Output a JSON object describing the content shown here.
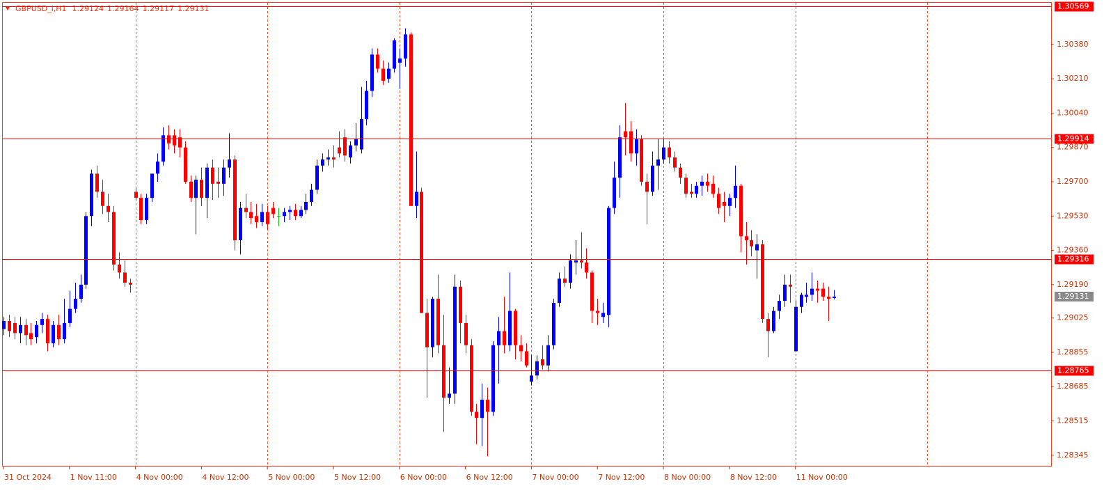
{
  "chart_data": {
    "type": "candlestick",
    "symbol": "GBPUSD_i,H1",
    "colors": {
      "up": "#0000ff",
      "down": "#ff0000",
      "doji": "#00c000",
      "level": "#ff0000",
      "separator": "#ff4a1c",
      "axis": "#c83200"
    },
    "ylim": [
      1.28289,
      1.30583
    ],
    "yticks": [
      {
        "value": 1.3038,
        "label": "1.30380"
      },
      {
        "value": 1.3021,
        "label": "1.30210"
      },
      {
        "value": 1.3004,
        "label": "1.30040"
      },
      {
        "value": 1.2987,
        "label": "1.29870"
      },
      {
        "value": 1.297,
        "label": "1.29700"
      },
      {
        "value": 1.2953,
        "label": "1.29530"
      },
      {
        "value": 1.2936,
        "label": "1.29360"
      },
      {
        "value": 1.2919,
        "label": "1.29190"
      },
      {
        "value": 1.29025,
        "label": "1.29025"
      },
      {
        "value": 1.28855,
        "label": "1.28855"
      },
      {
        "value": 1.28685,
        "label": "1.28685"
      },
      {
        "value": 1.28515,
        "label": "1.28515"
      },
      {
        "value": 1.28345,
        "label": "1.28345"
      }
    ],
    "xlim": [
      -0.25,
      190.5
    ],
    "xticks": [
      {
        "value": 0,
        "label": "31 Oct 2024"
      },
      {
        "value": 12,
        "label": "1 Nov 11:00"
      },
      {
        "value": 24,
        "label": "4 Nov 00:00"
      },
      {
        "value": 36,
        "label": "4 Nov 12:00"
      },
      {
        "value": 48,
        "label": "5 Nov 00:00"
      },
      {
        "value": 60,
        "label": "5 Nov 12:00"
      },
      {
        "value": 72,
        "label": "6 Nov 00:00"
      },
      {
        "value": 84,
        "label": "6 Nov 12:00"
      },
      {
        "value": 96,
        "label": "7 Nov 00:00"
      },
      {
        "value": 108,
        "label": "7 Nov 12:00"
      },
      {
        "value": 120,
        "label": "8 Nov 00:00"
      },
      {
        "value": 132,
        "label": "8 Nov 12:00"
      },
      {
        "value": 144,
        "label": "11 Nov 00:00"
      }
    ],
    "separators": [
      24,
      48,
      72,
      96,
      120,
      144,
      168
    ],
    "levels": [
      {
        "value": 1.30569,
        "label": "1.30569"
      },
      {
        "value": 1.29914,
        "label": "1.29914"
      },
      {
        "value": 1.29316,
        "label": "1.29316"
      },
      {
        "value": 1.28765,
        "label": "1.28765"
      }
    ],
    "ohlc": [
      [
        1.2897,
        1.2903,
        1.2894,
        1.2901
      ],
      [
        1.2901,
        1.2904,
        1.2893,
        1.2896
      ],
      [
        1.29,
        1.2903,
        1.2892,
        1.2895
      ],
      [
        1.2895,
        1.2903,
        1.289,
        1.2899
      ],
      [
        1.2899,
        1.2902,
        1.2889,
        1.2894
      ],
      [
        1.2895,
        1.29,
        1.2889,
        1.2892
      ],
      [
        1.2893,
        1.2901,
        1.289,
        1.2899
      ],
      [
        1.2899,
        1.2905,
        1.2895,
        1.2902
      ],
      [
        1.2902,
        1.2904,
        1.2886,
        1.289
      ],
      [
        1.289,
        1.2901,
        1.2888,
        1.2899
      ],
      [
        1.2899,
        1.2904,
        1.2889,
        1.2892
      ],
      [
        1.2892,
        1.2912,
        1.289,
        1.29
      ],
      [
        1.29,
        1.2916,
        1.2898,
        1.2907
      ],
      [
        1.2907,
        1.292,
        1.2905,
        1.2912
      ],
      [
        1.2912,
        1.2924,
        1.291,
        1.2919
      ],
      [
        1.2919,
        1.2955,
        1.2917,
        1.2953
      ],
      [
        1.2953,
        1.2976,
        1.2948,
        1.2974
      ],
      [
        1.2974,
        1.2978,
        1.2962,
        1.2965
      ],
      [
        1.2965,
        1.2971,
        1.2954,
        1.2958
      ],
      [
        1.2958,
        1.2964,
        1.295,
        1.2955
      ],
      [
        1.2955,
        1.2958,
        1.2926,
        1.2929
      ],
      [
        1.2929,
        1.2935,
        1.2922,
        1.2925
      ],
      [
        1.2925,
        1.2931,
        1.2918,
        1.292
      ],
      [
        1.292,
        1.2922,
        1.2915,
        1.2919
      ],
      [
        1.2965,
        1.2967,
        1.2961,
        1.2962
      ],
      [
        1.2962,
        1.2964,
        1.2949,
        1.2951
      ],
      [
        1.2951,
        1.2964,
        1.2949,
        1.2962
      ],
      [
        1.2962,
        1.2974,
        1.296,
        1.2974
      ],
      [
        1.2974,
        1.2984,
        1.297,
        1.298
      ],
      [
        1.298,
        1.2997,
        1.2978,
        1.2993
      ],
      [
        1.2993,
        1.2998,
        1.2986,
        1.2989
      ],
      [
        1.2993,
        1.2996,
        1.2984,
        1.2988
      ],
      [
        1.2992,
        1.2996,
        1.2982,
        1.2987
      ],
      [
        1.2987,
        1.299,
        1.2969,
        1.297
      ],
      [
        1.297,
        1.2973,
        1.296,
        1.2962
      ],
      [
        1.2962,
        1.2973,
        1.2944,
        1.2971
      ],
      [
        1.2971,
        1.2977,
        1.2958,
        1.2962
      ],
      [
        1.2962,
        1.2979,
        1.2952,
        1.2977
      ],
      [
        1.2977,
        1.2981,
        1.2961,
        1.2969
      ],
      [
        1.297,
        1.2977,
        1.2962,
        1.2969
      ],
      [
        1.2969,
        1.2981,
        1.2963,
        1.2977
      ],
      [
        1.2977,
        1.2994,
        1.2972,
        1.2981
      ],
      [
        1.2981,
        1.2983,
        1.2936,
        1.2941
      ],
      [
        1.2941,
        1.296,
        1.2934,
        1.2957
      ],
      [
        1.2957,
        1.2964,
        1.2952,
        1.2955
      ],
      [
        1.2955,
        1.296,
        1.2949,
        1.2952
      ],
      [
        1.2953,
        1.2959,
        1.2947,
        1.295
      ],
      [
        1.295,
        1.2959,
        1.2948,
        1.2955
      ],
      [
        1.2955,
        1.2958,
        1.2946,
        1.2949
      ],
      [
        1.2957,
        1.296,
        1.2952,
        1.2954
      ],
      [
        1.2953,
        1.2957,
        1.2948,
        1.2953
      ],
      [
        1.2953,
        1.2957,
        1.295,
        1.2955
      ],
      [
        1.2955,
        1.2958,
        1.2951,
        1.2956
      ],
      [
        1.2956,
        1.2959,
        1.2951,
        1.2953
      ],
      [
        1.2953,
        1.2958,
        1.2952,
        1.2956
      ],
      [
        1.2956,
        1.2964,
        1.2954,
        1.296
      ],
      [
        1.296,
        1.2969,
        1.2958,
        1.2966
      ],
      [
        1.2966,
        1.2981,
        1.2964,
        1.2978
      ],
      [
        1.2978,
        1.2984,
        1.2975,
        1.2981
      ],
      [
        1.2981,
        1.2986,
        1.2978,
        1.2982
      ],
      [
        1.2982,
        1.2988,
        1.2977,
        1.2981
      ],
      [
        1.2987,
        1.2995,
        1.2982,
        1.2984
      ],
      [
        1.2992,
        1.2996,
        1.298,
        1.2983
      ],
      [
        1.2982,
        1.299,
        1.2979,
        1.2988
      ],
      [
        1.2988,
        1.2999,
        1.2985,
        1.2991
      ],
      [
        1.2986,
        1.3017,
        1.2984,
        1.3001
      ],
      [
        1.3001,
        1.302,
        1.2998,
        1.3015
      ],
      [
        1.3015,
        1.3036,
        1.3012,
        1.3033
      ],
      [
        1.3033,
        1.3036,
        1.3024,
        1.3026
      ],
      [
        1.3026,
        1.303,
        1.3018,
        1.302
      ],
      [
        1.3021,
        1.3029,
        1.3019,
        1.3026
      ],
      [
        1.3026,
        1.3041,
        1.3024,
        1.304
      ],
      [
        1.3029,
        1.3036,
        1.3016,
        1.3031
      ],
      [
        1.3031,
        1.3046,
        1.3027,
        1.3043
      ],
      [
        1.3043,
        1.3044,
        1.2958,
        1.2958
      ],
      [
        1.2958,
        1.2985,
        1.2952,
        1.2965
      ],
      [
        1.2965,
        1.2967,
        1.2905,
        1.2905
      ],
      [
        1.2905,
        1.2912,
        1.2863,
        1.2888
      ],
      [
        1.2888,
        1.2913,
        1.2883,
        1.2912
      ],
      [
        1.2912,
        1.2924,
        1.2885,
        1.2889
      ],
      [
        1.2889,
        1.2904,
        1.2846,
        1.2863
      ],
      [
        1.2863,
        1.2878,
        1.286,
        1.2865
      ],
      [
        1.2865,
        1.2924,
        1.286,
        1.2918
      ],
      [
        1.2918,
        1.2921,
        1.289,
        1.29
      ],
      [
        1.29,
        1.2904,
        1.2885,
        1.2889
      ],
      [
        1.2889,
        1.2892,
        1.2854,
        1.2856
      ],
      [
        1.2856,
        1.286,
        1.284,
        1.2853
      ],
      [
        1.2853,
        1.287,
        1.2839,
        1.2862
      ],
      [
        1.2862,
        1.2868,
        1.2834,
        1.2856
      ],
      [
        1.2856,
        1.2891,
        1.2854,
        1.2889
      ],
      [
        1.2889,
        1.2903,
        1.287,
        1.2896
      ],
      [
        1.2896,
        1.2913,
        1.2885,
        1.2889
      ],
      [
        1.2889,
        1.2925,
        1.2886,
        1.2906
      ],
      [
        1.2906,
        1.2907,
        1.2882,
        1.2889
      ],
      [
        1.2889,
        1.2894,
        1.2881,
        1.2886
      ],
      [
        1.2886,
        1.289,
        1.2878,
        1.2879
      ],
      [
        1.2871,
        1.2884,
        1.2869,
        1.2874
      ],
      [
        1.2874,
        1.2884,
        1.2872,
        1.2881
      ],
      [
        1.2882,
        1.2889,
        1.2877,
        1.2879
      ],
      [
        1.2879,
        1.2894,
        1.2876,
        1.2889
      ],
      [
        1.2889,
        1.2912,
        1.2887,
        1.291
      ],
      [
        1.291,
        1.2925,
        1.2908,
        1.2922
      ],
      [
        1.2922,
        1.2928,
        1.2918,
        1.292
      ],
      [
        1.292,
        1.2934,
        1.2917,
        1.2931
      ],
      [
        1.293,
        1.2941,
        1.2924,
        1.2931
      ],
      [
        1.2931,
        1.2945,
        1.2927,
        1.293
      ],
      [
        1.293,
        1.2937,
        1.2922,
        1.2925
      ],
      [
        1.2925,
        1.2926,
        1.29,
        1.2906
      ],
      [
        1.2906,
        1.2912,
        1.2899,
        1.2905
      ],
      [
        1.2903,
        1.291,
        1.29,
        1.2905
      ],
      [
        1.2904,
        1.2958,
        1.2898,
        1.2957
      ],
      [
        1.2957,
        1.298,
        1.2954,
        1.2972
      ],
      [
        1.2972,
        1.2998,
        1.2962,
        1.2992
      ],
      [
        1.2995,
        1.3009,
        1.2983,
        1.2992
      ],
      [
        1.2995,
        1.3,
        1.298,
        1.2984
      ],
      [
        1.2984,
        1.2996,
        1.2978,
        1.2991
      ],
      [
        1.2991,
        1.2993,
        1.2968,
        1.297
      ],
      [
        1.297,
        1.2974,
        1.2949,
        1.2965
      ],
      [
        1.2965,
        1.2985,
        1.2963,
        1.2978
      ],
      [
        1.2978,
        1.2991,
        1.2966,
        1.2981
      ],
      [
        1.2981,
        1.2991,
        1.2979,
        1.2987
      ],
      [
        1.2987,
        1.299,
        1.2979,
        1.2982
      ],
      [
        1.2982,
        1.2985,
        1.2975,
        1.2977
      ],
      [
        1.2977,
        1.2979,
        1.2969,
        1.2972
      ],
      [
        1.2972,
        1.2974,
        1.2962,
        1.2964
      ],
      [
        1.2965,
        1.2969,
        1.2962,
        1.2964
      ],
      [
        1.2964,
        1.297,
        1.2962,
        1.2968
      ],
      [
        1.2968,
        1.2973,
        1.2963,
        1.297
      ],
      [
        1.297,
        1.2974,
        1.2965,
        1.2968
      ],
      [
        1.2969,
        1.2973,
        1.2962,
        1.2964
      ],
      [
        1.2964,
        1.2967,
        1.2954,
        1.2957
      ],
      [
        1.296,
        1.2965,
        1.295,
        1.2958
      ],
      [
        1.2958,
        1.2964,
        1.2953,
        1.2962
      ],
      [
        1.2962,
        1.2978,
        1.2957,
        1.2968
      ],
      [
        1.2968,
        1.2969,
        1.2935,
        1.2943
      ],
      [
        1.2943,
        1.295,
        1.2929,
        1.2941
      ],
      [
        1.2941,
        1.2946,
        1.2933,
        1.2938
      ],
      [
        1.2936,
        1.2944,
        1.2922,
        1.2939
      ],
      [
        1.2939,
        1.2941,
        1.29,
        1.2902
      ],
      [
        1.2902,
        1.2905,
        1.2883,
        1.2896
      ],
      [
        1.2896,
        1.2908,
        1.2895,
        1.2906
      ],
      [
        1.2906,
        1.2914,
        1.2902,
        1.2911
      ],
      [
        1.2911,
        1.2924,
        1.2908,
        1.2919
      ],
      [
        1.2919,
        1.2924,
        1.291,
        1.2918
      ],
      [
        1.2886,
        1.2911,
        1.2886,
        1.2908
      ],
      [
        1.2908,
        1.2915,
        1.2905,
        1.2914
      ],
      [
        1.2913,
        1.292,
        1.291,
        1.2914
      ],
      [
        1.2914,
        1.2925,
        1.2911,
        1.2917
      ],
      [
        1.2917,
        1.2921,
        1.291,
        1.2916
      ],
      [
        1.2917,
        1.292,
        1.2911,
        1.2913
      ],
      [
        1.2913,
        1.2918,
        1.2901,
        1.2912
      ],
      [
        1.29124,
        1.29164,
        1.29117,
        1.29131
      ]
    ]
  }
}
